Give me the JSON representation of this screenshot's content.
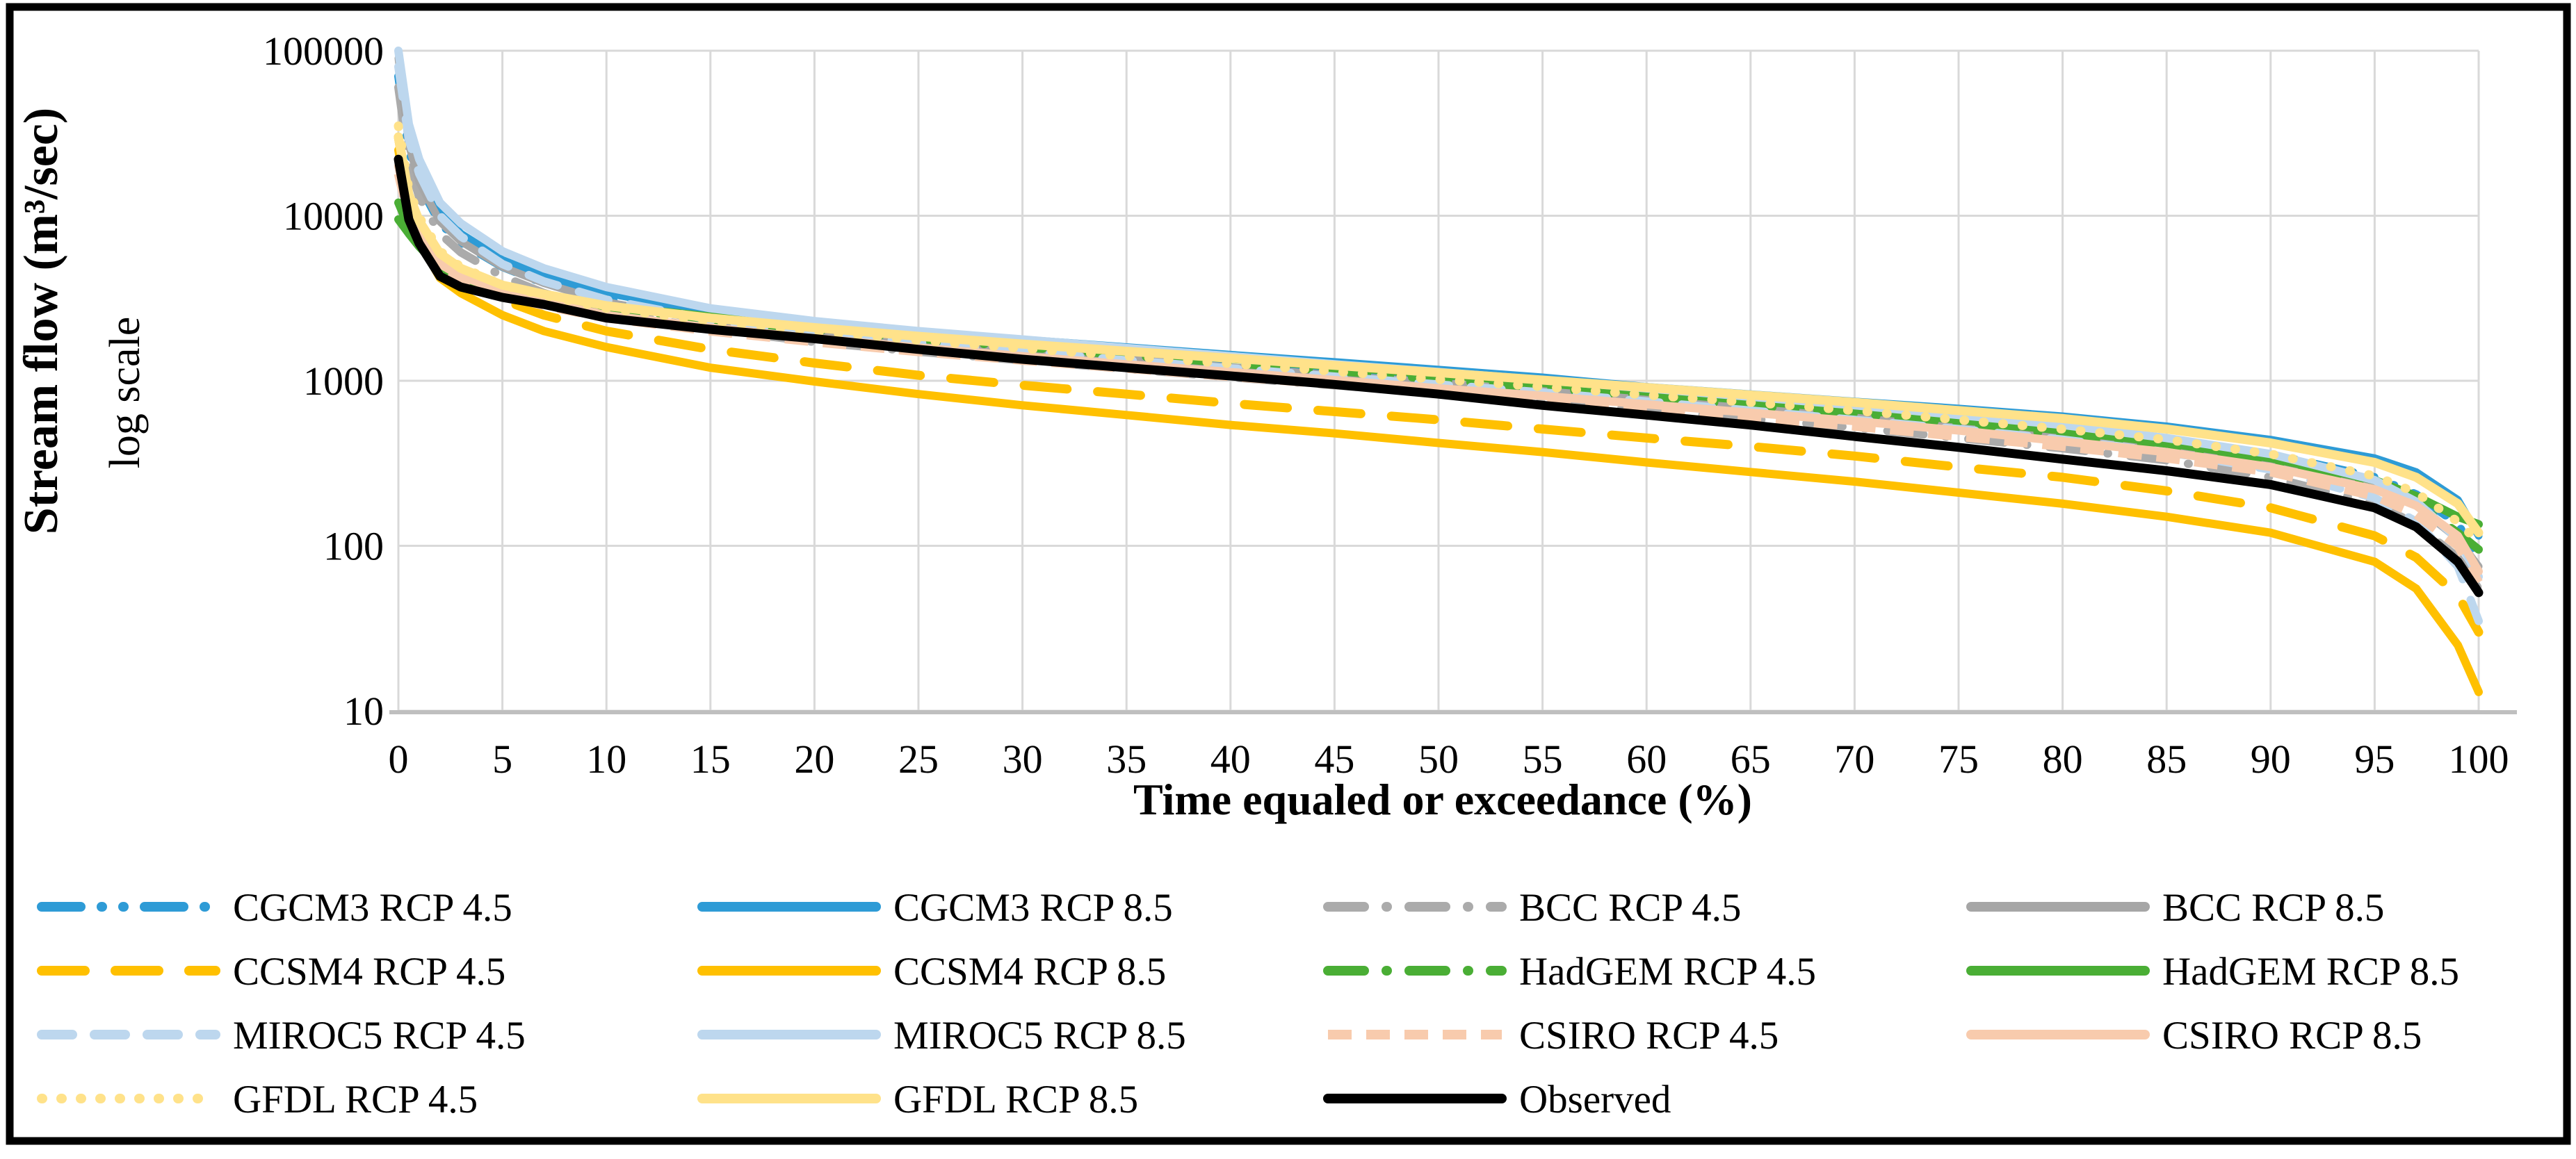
{
  "figure": {
    "background": "#FFFFFF",
    "border_color": "#000000",
    "grid_color": "#D9D9D9",
    "axis_line_color": "#BFBFBF"
  },
  "chart_data": {
    "type": "line",
    "title": "",
    "xlabel": "Time equaled or exceedance (%)",
    "ylabel": "Stream flow (m³/sec)",
    "ylabel_secondary": "log scale",
    "y_scale": "log",
    "xlim": [
      0,
      100
    ],
    "ylim": [
      10,
      100000
    ],
    "grid": true,
    "legend_position": "bottom",
    "x_ticks": [
      0,
      5,
      10,
      15,
      20,
      25,
      30,
      35,
      40,
      45,
      50,
      55,
      60,
      65,
      70,
      75,
      80,
      85,
      90,
      95,
      100
    ],
    "y_ticks": [
      100000,
      10000,
      1000,
      100,
      10
    ],
    "x": [
      0,
      0.5,
      1,
      2,
      3,
      5,
      7,
      10,
      15,
      20,
      25,
      30,
      35,
      40,
      45,
      50,
      55,
      60,
      65,
      70,
      75,
      80,
      85,
      90,
      95,
      97,
      99,
      100
    ],
    "series": [
      {
        "name": "CGCM3  RCP 4.5",
        "color": "#2E9BD6",
        "style": "dashdotdot",
        "width": 12,
        "values": [
          70000,
          25000,
          15500,
          9000,
          6900,
          4900,
          3900,
          3100,
          2400,
          2050,
          1800,
          1620,
          1450,
          1300,
          1170,
          1050,
          940,
          840,
          750,
          670,
          590,
          510,
          440,
          360,
          260,
          205,
          135,
          85
        ]
      },
      {
        "name": "CGCM3  RCP 8.5",
        "color": "#2E9BD6",
        "style": "solid",
        "width": 11,
        "values": [
          100000,
          32000,
          19000,
          10500,
          7800,
          5400,
          4300,
          3400,
          2600,
          2250,
          1980,
          1780,
          1600,
          1440,
          1300,
          1170,
          1050,
          920,
          830,
          750,
          680,
          610,
          530,
          440,
          340,
          280,
          190,
          115
        ]
      },
      {
        "name": "BCC RCP 4.5",
        "color": "#ABABAB",
        "style": "dashdot",
        "width": 12,
        "values": [
          60000,
          21000,
          13000,
          7800,
          6000,
          4300,
          3400,
          2650,
          2050,
          1720,
          1500,
          1330,
          1180,
          1050,
          940,
          840,
          750,
          660,
          590,
          520,
          450,
          390,
          330,
          260,
          180,
          135,
          85,
          55
        ]
      },
      {
        "name": "BCC RCP 8.5",
        "color": "#A6A6A6",
        "style": "solid",
        "width": 11,
        "values": [
          90000,
          27000,
          16000,
          9200,
          7000,
          4900,
          3900,
          3000,
          2300,
          1950,
          1700,
          1520,
          1350,
          1210,
          1080,
          970,
          870,
          770,
          690,
          610,
          540,
          470,
          400,
          320,
          230,
          175,
          110,
          75
        ]
      },
      {
        "name": "CCSM4 RCP 4.5",
        "color": "#FFC000",
        "style": "longdash",
        "width": 13,
        "values": [
          30000,
          13000,
          8500,
          5200,
          4200,
          3100,
          2500,
          2000,
          1550,
          1280,
          1080,
          940,
          830,
          730,
          650,
          580,
          510,
          450,
          400,
          350,
          300,
          260,
          215,
          170,
          115,
          85,
          50,
          30
        ]
      },
      {
        "name": "CCSM4 RCP 8.5",
        "color": "#FFC000",
        "style": "solid",
        "width": 12,
        "values": [
          25000,
          10500,
          7000,
          4200,
          3400,
          2500,
          2000,
          1600,
          1200,
          990,
          830,
          710,
          620,
          540,
          480,
          420,
          370,
          320,
          280,
          245,
          210,
          180,
          150,
          120,
          80,
          55,
          25,
          13
        ]
      },
      {
        "name": "HadGEM RCP 4.5",
        "color": "#4AAE35",
        "style": "dashdot",
        "width": 12,
        "values": [
          12000,
          8500,
          7000,
          5000,
          4300,
          3600,
          3200,
          2750,
          2350,
          2050,
          1800,
          1600,
          1430,
          1280,
          1150,
          1020,
          910,
          800,
          710,
          630,
          550,
          470,
          400,
          320,
          230,
          180,
          120,
          95
        ]
      },
      {
        "name": "HadGEM RCP 8.5",
        "color": "#4AAE35",
        "style": "solid",
        "width": 12,
        "values": [
          9500,
          7800,
          6500,
          4800,
          4200,
          3600,
          3250,
          2850,
          2450,
          2150,
          1900,
          1700,
          1520,
          1360,
          1220,
          1090,
          970,
          860,
          760,
          670,
          580,
          500,
          420,
          340,
          250,
          200,
          150,
          135
        ]
      },
      {
        "name": "MIROC5 RCP 4.5",
        "color": "#BDD7EE",
        "style": "dash",
        "width": 12,
        "values": [
          80000,
          29000,
          18000,
          10000,
          7500,
          5100,
          4000,
          3100,
          2350,
          1950,
          1700,
          1500,
          1330,
          1190,
          1060,
          950,
          850,
          750,
          660,
          580,
          510,
          440,
          370,
          290,
          195,
          140,
          75,
          35
        ]
      },
      {
        "name": "MIROC5 RCP 8.5",
        "color": "#BDD7EE",
        "style": "solid",
        "width": 12,
        "values": [
          100000,
          36000,
          22000,
          12000,
          9000,
          6100,
          4800,
          3700,
          2750,
          2300,
          2000,
          1780,
          1580,
          1410,
          1260,
          1130,
          1010,
          900,
          800,
          710,
          620,
          540,
          450,
          360,
          250,
          185,
          110,
          65
        ]
      },
      {
        "name": "CSIRO RCP 4.5",
        "color": "#F8CBAD",
        "style": "squaredash",
        "width": 13,
        "values": [
          18000,
          9800,
          7200,
          4900,
          4100,
          3300,
          2850,
          2400,
          2000,
          1720,
          1500,
          1330,
          1190,
          1060,
          950,
          850,
          760,
          670,
          600,
          530,
          460,
          400,
          340,
          280,
          200,
          155,
          100,
          60
        ]
      },
      {
        "name": "CSIRO RCP 8.5",
        "color": "#F8CBAD",
        "style": "solid",
        "width": 12,
        "values": [
          20000,
          10500,
          7600,
          5100,
          4300,
          3500,
          3000,
          2500,
          2100,
          1810,
          1590,
          1410,
          1260,
          1130,
          1010,
          900,
          810,
          720,
          640,
          570,
          500,
          430,
          370,
          300,
          220,
          175,
          115,
          70
        ]
      },
      {
        "name": "GFDL RCP 4.5",
        "color": "#FFE28A",
        "style": "dot",
        "width": 13,
        "values": [
          35000,
          14500,
          9800,
          6100,
          4900,
          3800,
          3300,
          2750,
          2300,
          2000,
          1760,
          1570,
          1410,
          1270,
          1140,
          1020,
          920,
          820,
          740,
          660,
          580,
          510,
          440,
          360,
          265,
          210,
          140,
          105
        ]
      },
      {
        "name": "GFDL RCP 8.5",
        "color": "#FFE28A",
        "style": "solid",
        "width": 13,
        "values": [
          30000,
          13500,
          9300,
          5900,
          4800,
          3800,
          3350,
          2850,
          2400,
          2100,
          1860,
          1670,
          1510,
          1370,
          1240,
          1120,
          1010,
          910,
          820,
          740,
          660,
          590,
          510,
          420,
          320,
          260,
          180,
          120
        ]
      },
      {
        "name": "Observed",
        "color": "#000000",
        "style": "solid",
        "width": 13,
        "values": [
          22000,
          9500,
          6800,
          4300,
          3700,
          3200,
          2900,
          2400,
          2050,
          1800,
          1550,
          1350,
          1200,
          1070,
          950,
          830,
          710,
          620,
          540,
          460,
          395,
          335,
          285,
          235,
          170,
          130,
          80,
          52
        ]
      }
    ]
  }
}
